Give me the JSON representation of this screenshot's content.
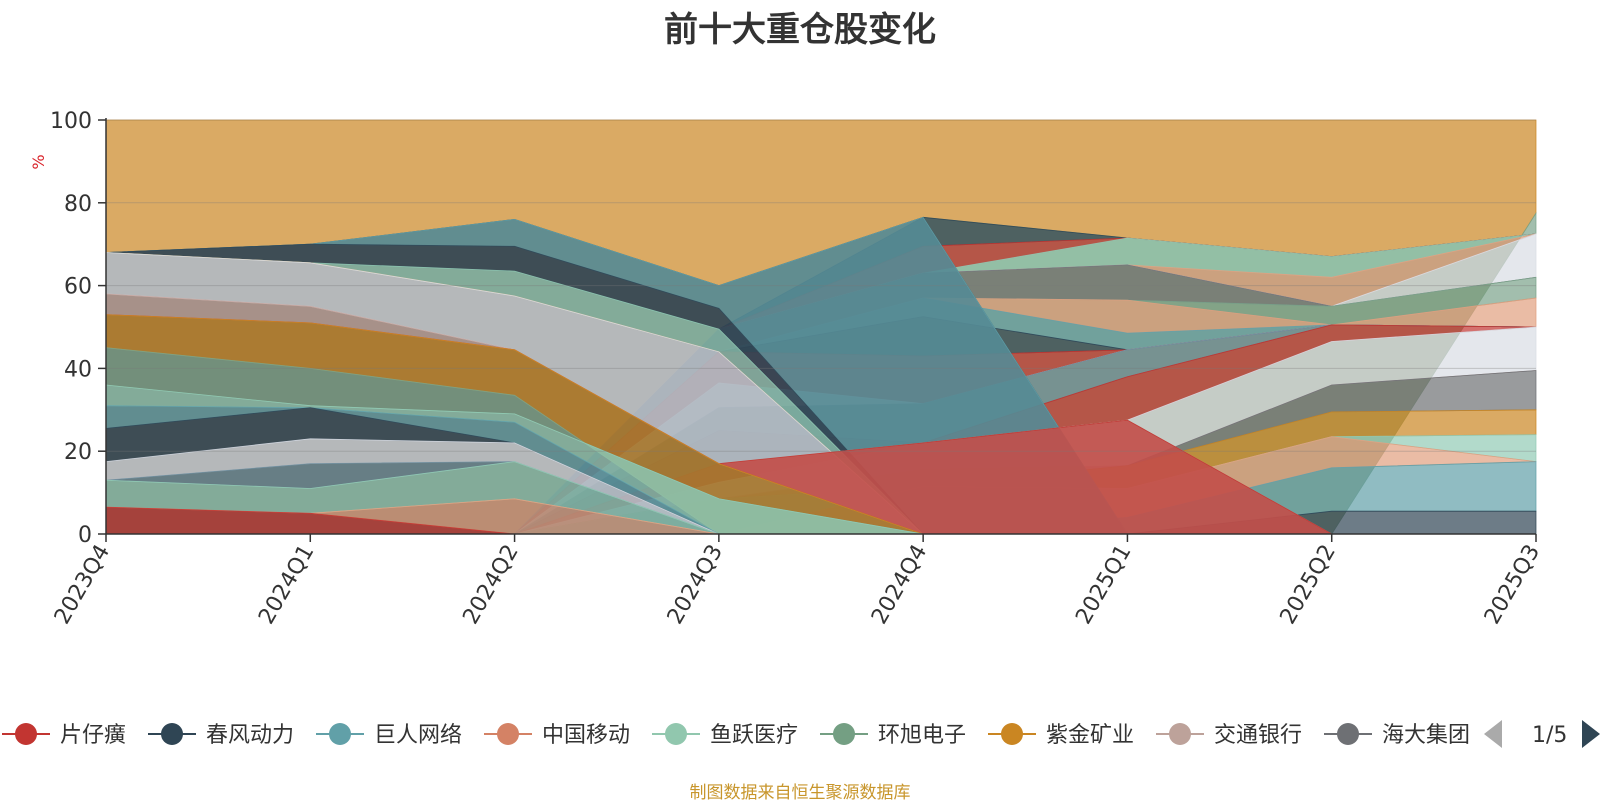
{
  "chart_data": {
    "type": "area",
    "stacked": true,
    "stack_style": "100% stacked (layers sorted each period)",
    "title": "前十大重仓股变化",
    "ylabel": "%",
    "ylim": [
      0,
      100
    ],
    "yticks": [
      0,
      20,
      40,
      60,
      80,
      100
    ],
    "grid": true,
    "categories": [
      "2023Q4",
      "2024Q1",
      "2024Q2",
      "2024Q3",
      "2024Q4",
      "2025Q1",
      "2025Q2",
      "2025Q3"
    ],
    "layers": [
      {
        "color": "#c23531",
        "upper": [
          6.5,
          5,
          0,
          0,
          0,
          0,
          0,
          0
        ]
      },
      {
        "color": "#e1a07f",
        "upper": [
          6.5,
          5,
          8.5,
          0,
          0,
          0,
          0,
          0
        ]
      },
      {
        "color": "#92cbb5",
        "upper": [
          13,
          11,
          17.5,
          0,
          0,
          0,
          0,
          0
        ]
      },
      {
        "color": "#6a8a99",
        "upper": [
          13,
          17,
          17.5,
          0,
          0,
          0,
          0,
          0
        ]
      },
      {
        "color": "#d9dde4",
        "upper": [
          17.5,
          23,
          22,
          0,
          0,
          0,
          0,
          0
        ]
      },
      {
        "color": "#2f4554",
        "upper": [
          25.5,
          30.5,
          22,
          0,
          0,
          0,
          0,
          0
        ]
      },
      {
        "color": "#61a0a8",
        "upper": [
          31,
          30.5,
          27,
          0,
          0,
          0,
          0,
          0
        ]
      },
      {
        "color": "#92cbb5",
        "upper": [
          36,
          31,
          29,
          8.5,
          0,
          0,
          0,
          0
        ]
      },
      {
        "color": "#7aa38a",
        "upper": [
          45,
          40,
          33.5,
          0,
          0,
          0,
          0,
          0
        ]
      },
      {
        "color": "#ca8622",
        "upper": [
          53,
          51,
          44.5,
          17,
          0,
          0,
          0,
          0
        ]
      },
      {
        "color": "#c23531",
        "upper": [
          53,
          51,
          44.5,
          17,
          22,
          27.5,
          0,
          0
        ]
      },
      {
        "color": "#c4a59e",
        "upper": [
          58,
          55,
          44.5,
          17,
          0,
          0,
          0,
          0
        ]
      },
      {
        "color": "#d9dde4",
        "upper": [
          68,
          65.5,
          57.5,
          44,
          0,
          0,
          0,
          0
        ]
      },
      {
        "color": "#ca8622",
        "upper": [
          68,
          65.5,
          57.5,
          44,
          0,
          0,
          0,
          0
        ]
      },
      {
        "color": "#92cbb5",
        "upper": [
          68,
          65.5,
          63.5,
          49.5,
          0,
          0,
          0,
          0
        ]
      },
      {
        "color": "#2f4554",
        "upper": [
          68,
          70,
          69.5,
          54.5,
          0,
          0,
          0,
          0
        ]
      },
      {
        "color": "#61a0a8",
        "upper": [
          68,
          70,
          76,
          60,
          76.5,
          0,
          0,
          0
        ]
      },
      {
        "color": "#2f4554",
        "upper": [
          0,
          0,
          0,
          0,
          0,
          0,
          5.5,
          5.5
        ]
      },
      {
        "color": "#61a0a8",
        "upper": [
          0,
          0,
          0,
          0,
          0,
          4,
          16,
          17.5
        ]
      },
      {
        "color": "#e1a07f",
        "upper": [
          0,
          0,
          0,
          0,
          11.5,
          11,
          23.5,
          17.5
        ]
      },
      {
        "color": "#92cbb5",
        "upper": [
          0,
          0,
          0,
          8.5,
          11.5,
          11,
          23.5,
          24
        ]
      },
      {
        "color": "#ca8622",
        "upper": [
          0,
          0,
          0,
          8.5,
          11.5,
          16.5,
          29.5,
          30
        ]
      },
      {
        "color": "#6e7074",
        "upper": [
          0,
          0,
          0,
          8.5,
          11.5,
          16.5,
          36,
          39.5
        ]
      },
      {
        "color": "#c4a59e",
        "upper": [
          0,
          0,
          0,
          8.5,
          15.5,
          16.5,
          36,
          39.5
        ]
      },
      {
        "color": "#d9dde4",
        "upper": [
          0,
          0,
          0,
          12.5,
          22,
          27.5,
          46.5,
          50
        ]
      },
      {
        "color": "#c23531",
        "upper": [
          0,
          0,
          0,
          17,
          22,
          38,
          50.5,
          50
        ]
      },
      {
        "color": "#6e7074",
        "upper": [
          0,
          0,
          0,
          25,
          22,
          38,
          50.5,
          50
        ]
      },
      {
        "color": "#6a8a99",
        "upper": [
          0,
          0,
          0,
          30.5,
          31.5,
          44.5,
          50.5,
          50
        ]
      },
      {
        "color": "#d9dde4",
        "upper": [
          0,
          0,
          0,
          36.5,
          31.5,
          44.5,
          50.5,
          50
        ]
      },
      {
        "color": "#c23531",
        "upper": [
          0,
          0,
          0,
          44,
          43,
          44.5,
          50.5,
          50
        ]
      },
      {
        "color": "#2f4554",
        "upper": [
          0,
          0,
          0,
          44,
          52.5,
          44.5,
          50.5,
          50
        ]
      },
      {
        "color": "#61a0a8",
        "upper": [
          0,
          0,
          0,
          44,
          57,
          48.5,
          50.5,
          50
        ]
      },
      {
        "color": "#e1a07f",
        "upper": [
          0,
          0,
          0,
          44,
          57,
          56.5,
          50.5,
          57
        ]
      },
      {
        "color": "#7aa38a",
        "upper": [
          0,
          0,
          0,
          44,
          57,
          56.5,
          55,
          62
        ]
      },
      {
        "color": "#6e7074",
        "upper": [
          0,
          0,
          0,
          49.5,
          63,
          65,
          55,
          62
        ]
      },
      {
        "color": "#d9dde4",
        "upper": [
          0,
          0,
          0,
          49.5,
          63,
          65,
          55,
          72.5
        ]
      },
      {
        "color": "#e1a07f",
        "upper": [
          0,
          0,
          0,
          49.5,
          63,
          65,
          62,
          72.5
        ]
      },
      {
        "color": "#92cbb5",
        "upper": [
          0,
          0,
          0,
          49.5,
          63,
          71.5,
          67,
          72.5
        ]
      },
      {
        "color": "#c23531",
        "upper": [
          0,
          0,
          0,
          49.5,
          69.5,
          71.5,
          67,
          72.5
        ]
      },
      {
        "color": "#2f4554",
        "upper": [
          0,
          0,
          0,
          49.5,
          76.5,
          71.5,
          67,
          72.5
        ]
      },
      {
        "color": "#7aa38a",
        "upper": [
          0,
          0,
          0,
          0,
          0,
          0,
          0,
          77.5
        ]
      },
      {
        "color": "#ca8622",
        "upper": [
          100,
          100,
          100,
          100,
          100,
          100,
          100,
          100
        ]
      }
    ],
    "legend": {
      "placement": "bottom",
      "page": "1/5",
      "items": [
        {
          "name": "片仔癀",
          "color": "#c23531"
        },
        {
          "name": "春风动力",
          "color": "#2f4554"
        },
        {
          "name": "巨人网络",
          "color": "#61a0a8"
        },
        {
          "name": "中国移动",
          "color": "#d48265"
        },
        {
          "name": "鱼跃医疗",
          "color": "#91c7ae"
        },
        {
          "name": "环旭电子",
          "color": "#749f83"
        },
        {
          "name": "紫金矿业",
          "color": "#ca8622"
        },
        {
          "name": "交通银行",
          "color": "#bda29a"
        },
        {
          "name": "海大集团",
          "color": "#6e7074"
        }
      ]
    },
    "source_note": "制图数据来自恒生聚源数据库"
  }
}
